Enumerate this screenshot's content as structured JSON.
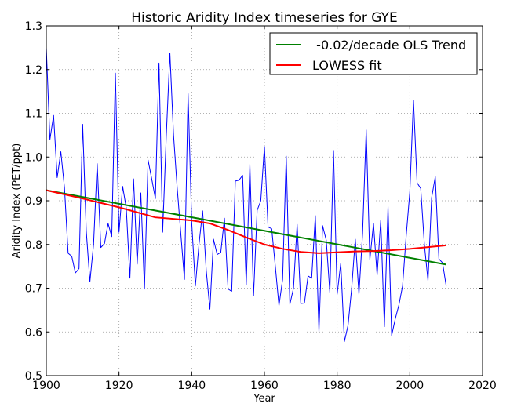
{
  "chart_data": {
    "type": "line",
    "title": "Historic Aridity Index timeseries for GYE",
    "xlabel": "Year",
    "ylabel": "Aridity Index (PET/ppt)",
    "xlim": [
      1900,
      2020
    ],
    "ylim": [
      0.5,
      1.3
    ],
    "xticks": [
      1900,
      1920,
      1940,
      1960,
      1980,
      2000,
      2020
    ],
    "yticks": [
      0.5,
      0.6,
      0.7,
      0.8,
      0.9,
      1.0,
      1.1,
      1.2,
      1.3
    ],
    "xtick_labels": [
      "1900",
      "1920",
      "1940",
      "1960",
      "1980",
      "2000",
      "2020"
    ],
    "ytick_labels": [
      "0.5",
      "0.6",
      "0.7",
      "0.8",
      "0.9",
      "1.0",
      "1.1",
      "1.2",
      "1.3"
    ],
    "grid": true,
    "legend_position": "top-right",
    "series": [
      {
        "color": "#0000ff",
        "x": [
          1900,
          1901,
          1902,
          1903,
          1904,
          1905,
          1906,
          1907,
          1908,
          1909,
          1910,
          1911,
          1912,
          1913,
          1914,
          1915,
          1916,
          1917,
          1918,
          1919,
          1920,
          1921,
          1922,
          1923,
          1924,
          1925,
          1926,
          1927,
          1928,
          1929,
          1930,
          1931,
          1932,
          1933,
          1934,
          1935,
          1936,
          1937,
          1938,
          1939,
          1940,
          1941,
          1942,
          1943,
          1944,
          1945,
          1946,
          1947,
          1948,
          1949,
          1950,
          1951,
          1952,
          1953,
          1954,
          1955,
          1956,
          1957,
          1958,
          1959,
          1960,
          1961,
          1962,
          1963,
          1964,
          1965,
          1966,
          1967,
          1968,
          1969,
          1970,
          1971,
          1972,
          1973,
          1974,
          1975,
          1976,
          1977,
          1978,
          1979,
          1980,
          1981,
          1982,
          1983,
          1984,
          1985,
          1986,
          1987,
          1988,
          1989,
          1990,
          1991,
          1992,
          1993,
          1994,
          1995,
          1996,
          1997,
          1998,
          1999,
          2000,
          2001,
          2002,
          2003,
          2004,
          2005,
          2006,
          2007,
          2008,
          2009,
          2010
        ],
        "y": [
          1.25,
          1.04,
          1.095,
          0.953,
          1.012,
          0.93,
          0.78,
          0.773,
          0.735,
          0.745,
          1.075,
          0.83,
          0.715,
          0.8,
          0.985,
          0.793,
          0.802,
          0.848,
          0.818,
          1.192,
          0.828,
          0.933,
          0.883,
          0.723,
          0.95,
          0.755,
          0.918,
          0.698,
          0.993,
          0.95,
          0.905,
          1.215,
          0.828,
          1.048,
          1.238,
          1.05,
          0.93,
          0.825,
          0.72,
          1.145,
          0.85,
          0.705,
          0.8,
          0.877,
          0.74,
          0.652,
          0.812,
          0.777,
          0.782,
          0.86,
          0.698,
          0.693,
          0.945,
          0.947,
          0.958,
          0.708,
          0.984,
          0.682,
          0.878,
          0.9,
          1.024,
          0.84,
          0.836,
          0.75,
          0.66,
          0.72,
          1.002,
          0.663,
          0.7,
          0.846,
          0.665,
          0.666,
          0.728,
          0.723,
          0.866,
          0.6,
          0.843,
          0.81,
          0.69,
          1.015,
          0.686,
          0.757,
          0.578,
          0.615,
          0.7,
          0.812,
          0.686,
          0.825,
          1.062,
          0.765,
          0.848,
          0.73,
          0.855,
          0.612,
          0.887,
          0.592,
          0.63,
          0.662,
          0.705,
          0.82,
          0.92,
          1.13,
          0.941,
          0.928,
          0.8,
          0.717,
          0.907,
          0.955,
          0.767,
          0.758,
          0.705
        ]
      },
      {
        "name": "  -0.02/decade OLS Trend",
        "color": "#008000",
        "x": [
          1900,
          2010
        ],
        "y": [
          0.924,
          0.754
        ]
      },
      {
        "name": "LOWESS fit",
        "color": "#ff0000",
        "x": [
          1900,
          1910,
          1920,
          1930,
          1940,
          1945,
          1950,
          1955,
          1960,
          1965,
          1970,
          1975,
          1980,
          1985,
          1990,
          1995,
          2000,
          2005,
          2010
        ],
        "y": [
          0.924,
          0.905,
          0.885,
          0.862,
          0.855,
          0.848,
          0.833,
          0.816,
          0.8,
          0.79,
          0.783,
          0.78,
          0.782,
          0.784,
          0.785,
          0.787,
          0.79,
          0.794,
          0.798
        ]
      }
    ]
  }
}
